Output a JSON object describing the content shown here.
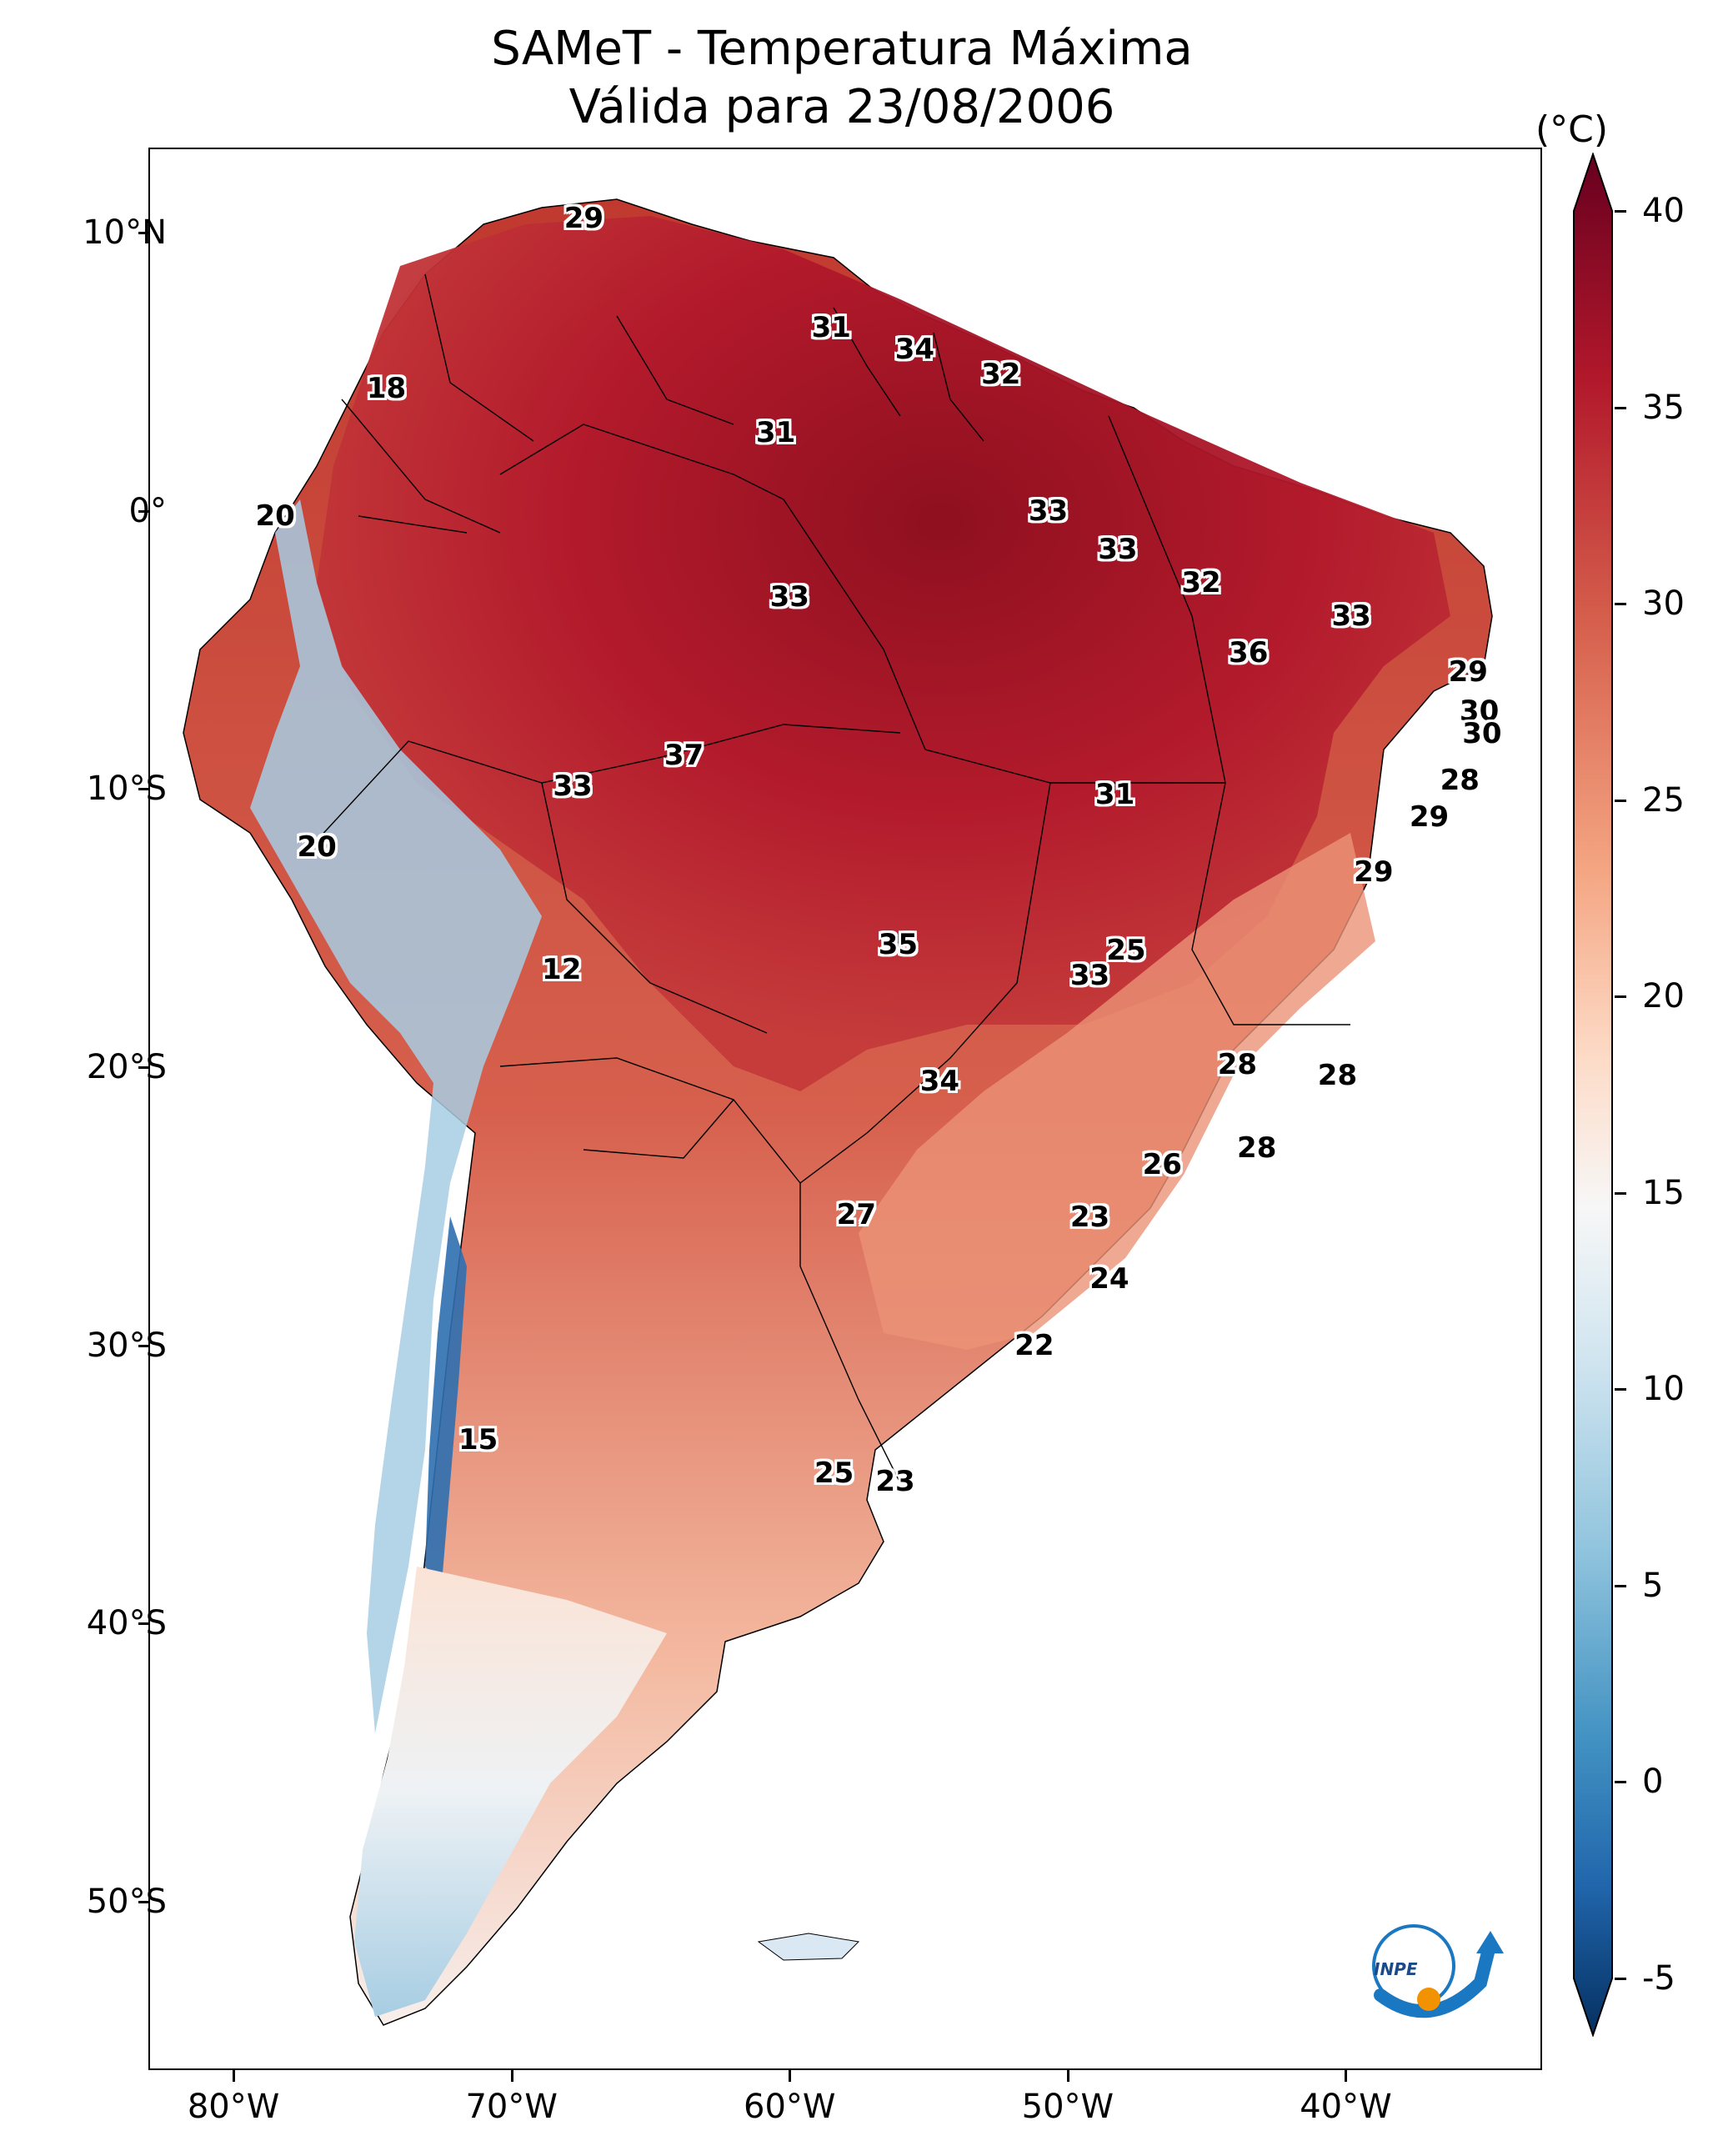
{
  "title": {
    "line1": "SAMeT - Temperatura Máxima",
    "line2": "Válida para 23/08/2006"
  },
  "axes": {
    "lat_labels": [
      "10°N",
      "0°",
      "10°S",
      "20°S",
      "30°S",
      "40°S",
      "50°S"
    ],
    "lon_labels": [
      "80°W",
      "70°W",
      "60°W",
      "50°W",
      "40°W"
    ],
    "lat_values": [
      10,
      0,
      -10,
      -20,
      -30,
      -40,
      -50
    ],
    "lon_values": [
      -80,
      -70,
      -60,
      -50,
      -40
    ]
  },
  "colorbar": {
    "unit": "(°C)",
    "ticks": [
      "40",
      "35",
      "30",
      "25",
      "20",
      "15",
      "10",
      "5",
      "0",
      "-5"
    ],
    "tick_values": [
      40,
      35,
      30,
      25,
      20,
      15,
      10,
      5,
      0,
      -5
    ],
    "min": -7,
    "max": 42,
    "colors": [
      "#053061",
      "#2166ac",
      "#4393c3",
      "#92c5de",
      "#d1e5f0",
      "#f7f7f7",
      "#fddbc7",
      "#f4a582",
      "#d6604d",
      "#b2182b",
      "#67001f"
    ]
  },
  "logo": {
    "text": "INPE"
  },
  "chart_data": {
    "type": "map",
    "title": "SAMeT - Temperatura Máxima Válida para 23/08/2006",
    "variable": "Temperatura Máxima",
    "unit": "°C",
    "date": "23/08/2006",
    "lon_range": [
      -83,
      -33
    ],
    "lat_range": [
      -56,
      13
    ],
    "point_labels": [
      {
        "lon": -67.4,
        "lat": 10.5,
        "value": 29
      },
      {
        "lon": -74.5,
        "lat": 4.4,
        "value": 18
      },
      {
        "lon": -58.5,
        "lat": 6.6,
        "value": 31
      },
      {
        "lon": -55.5,
        "lat": 5.8,
        "value": 34
      },
      {
        "lon": -52.4,
        "lat": 4.9,
        "value": 32
      },
      {
        "lon": -60.5,
        "lat": 2.8,
        "value": 31
      },
      {
        "lon": -50.7,
        "lat": 0.0,
        "value": 33
      },
      {
        "lon": -78.5,
        "lat": -0.2,
        "value": 20
      },
      {
        "lon": -48.2,
        "lat": -1.4,
        "value": 33
      },
      {
        "lon": -60.0,
        "lat": -3.1,
        "value": 33
      },
      {
        "lon": -45.2,
        "lat": -2.6,
        "value": 32
      },
      {
        "lon": -39.8,
        "lat": -3.8,
        "value": 33
      },
      {
        "lon": -43.5,
        "lat": -5.1,
        "value": 36
      },
      {
        "lon": -35.6,
        "lat": -5.8,
        "value": 29
      },
      {
        "lon": -35.2,
        "lat": -7.2,
        "value": 30
      },
      {
        "lon": -35.1,
        "lat": -8.0,
        "value": 30
      },
      {
        "lon": -63.8,
        "lat": -8.8,
        "value": 37
      },
      {
        "lon": -67.8,
        "lat": -9.9,
        "value": 33
      },
      {
        "lon": -48.3,
        "lat": -10.2,
        "value": 31
      },
      {
        "lon": -35.9,
        "lat": -9.7,
        "value": 28
      },
      {
        "lon": -37.0,
        "lat": -11.0,
        "value": 29
      },
      {
        "lon": -77.0,
        "lat": -12.1,
        "value": 20
      },
      {
        "lon": -39.0,
        "lat": -13.0,
        "value": 29
      },
      {
        "lon": -68.2,
        "lat": -16.5,
        "value": 12
      },
      {
        "lon": -56.1,
        "lat": -15.6,
        "value": 35
      },
      {
        "lon": -47.9,
        "lat": -15.8,
        "value": 25
      },
      {
        "lon": -49.2,
        "lat": -16.7,
        "value": 33
      },
      {
        "lon": -54.6,
        "lat": -20.5,
        "value": 34
      },
      {
        "lon": -43.9,
        "lat": -19.9,
        "value": 28
      },
      {
        "lon": -40.3,
        "lat": -20.3,
        "value": 28
      },
      {
        "lon": -46.6,
        "lat": -23.5,
        "value": 26
      },
      {
        "lon": -43.2,
        "lat": -22.9,
        "value": 28
      },
      {
        "lon": -57.6,
        "lat": -25.3,
        "value": 27
      },
      {
        "lon": -49.2,
        "lat": -25.4,
        "value": 23
      },
      {
        "lon": -48.5,
        "lat": -27.6,
        "value": 24
      },
      {
        "lon": -51.2,
        "lat": -30.0,
        "value": 22
      },
      {
        "lon": -71.2,
        "lat": -33.4,
        "value": 15
      },
      {
        "lon": -58.4,
        "lat": -34.6,
        "value": 25
      },
      {
        "lon": -56.2,
        "lat": -34.9,
        "value": 23
      }
    ]
  }
}
